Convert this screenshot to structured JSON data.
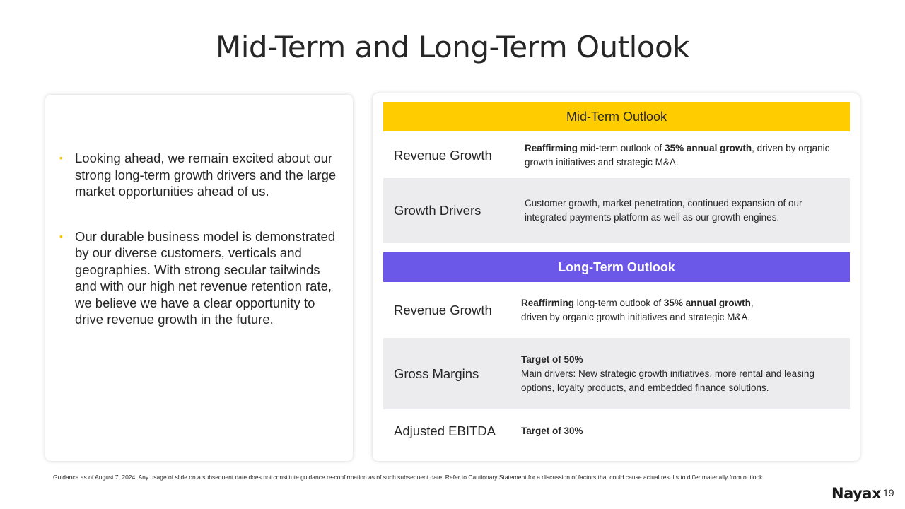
{
  "title": "Mid-Term and Long-Term Outlook",
  "bullets": [
    "Looking ahead, we remain excited about our strong long-term growth drivers and the large market opportunities ahead of us.",
    "Our durable business model is demonstrated by our diverse customers, verticals and geographies. With strong secular tailwinds and with our high net revenue retention rate, we believe we have a clear opportunity to drive revenue growth in the future."
  ],
  "mid_term": {
    "header": "Mid-Term Outlook",
    "rows": [
      {
        "label": "Revenue Growth",
        "bold1": "Reaffirming",
        "text1": " mid-term outlook of ",
        "bold2": "35% annual growth",
        "text2": ", driven by organic growth initiatives and strategic M&A."
      },
      {
        "label": "Growth Drivers",
        "text": "Customer growth, market penetration, continued expansion of our integrated payments platform as well as our growth engines."
      }
    ]
  },
  "long_term": {
    "header": "Long-Term Outlook",
    "rows": [
      {
        "label": "Revenue Growth",
        "bold1": "Reaffirming",
        "text1": " long-term outlook of ",
        "bold2": "35% annual growth",
        "text2": ",",
        "text3": "driven by organic growth initiatives and strategic M&A."
      },
      {
        "label": "Gross Margins",
        "bold": "Target of 50%",
        "text": "Main drivers: New strategic growth initiatives, more rental and leasing options, loyalty products, and embedded finance solutions."
      },
      {
        "label": "Adjusted EBITDA",
        "bold": "Target of 30%"
      }
    ]
  },
  "footnote": "Guidance as of August 7, 2024. Any usage of slide on a subsequent date does not constitute guidance re-confirmation as of such subsequent date. Refer to Cautionary Statement for a discussion of factors that could cause actual results to differ materially from outlook.",
  "logo": "Nayax",
  "page_number": "19",
  "colors": {
    "mid_header": "#ffcc00",
    "long_header": "#6b57e8",
    "bullet": "#f5c400",
    "row_shade": "#ececee"
  }
}
